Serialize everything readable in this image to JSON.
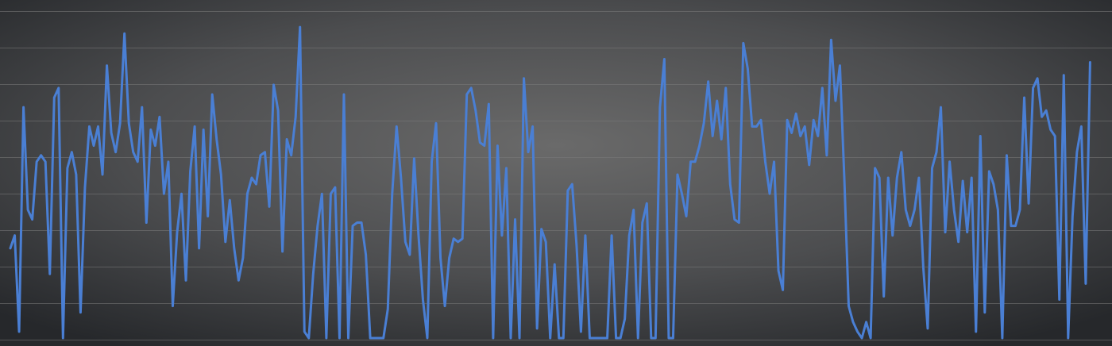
{
  "theme": {
    "background_outer": "#26282b",
    "background_inner": "#6a6a6a",
    "grid_color": "#7a7a7a",
    "line_color": "#4a7fd4"
  },
  "chart_data": {
    "type": "line",
    "title": "",
    "xlabel": "",
    "ylabel": "",
    "grid": true,
    "legend": "none",
    "xlim": [
      0,
      249
    ],
    "ylim": [
      0,
      100
    ],
    "series": [
      {
        "values": [
          28,
          32,
          2,
          72,
          40,
          37,
          55,
          57,
          55,
          20,
          75,
          78,
          0,
          53,
          58,
          51,
          8,
          47,
          66,
          60,
          66,
          51,
          85,
          64,
          58,
          67,
          95,
          67,
          58,
          55,
          72,
          36,
          65,
          60,
          69,
          45,
          55,
          10,
          33,
          45,
          18,
          52,
          66,
          28,
          65,
          38,
          76,
          62,
          51,
          30,
          43,
          28,
          18,
          25,
          45,
          50,
          48,
          57,
          58,
          41,
          79,
          71,
          27,
          62,
          57,
          69,
          97,
          2,
          0,
          20,
          35,
          45,
          0,
          45,
          47,
          0,
          76,
          0,
          35,
          36,
          36,
          26,
          0,
          0,
          0,
          0,
          9,
          45,
          66,
          50,
          30,
          26,
          56,
          32,
          12,
          0,
          55,
          67,
          25,
          10,
          25,
          31,
          30,
          31,
          76,
          78,
          71,
          61,
          60,
          73,
          0,
          60,
          32,
          53,
          0,
          37,
          0,
          81,
          58,
          66,
          3,
          34,
          30,
          0,
          23,
          0,
          0,
          46,
          48,
          29,
          2,
          32,
          0,
          0,
          0,
          0,
          0,
          32,
          0,
          0,
          6,
          32,
          40,
          0,
          36,
          42,
          0,
          0,
          72,
          87,
          0,
          0,
          51,
          45,
          38,
          55,
          55,
          60,
          67,
          80,
          63,
          74,
          62,
          78,
          48,
          37,
          36,
          92,
          84,
          66,
          66,
          68,
          55,
          45,
          55,
          21,
          15,
          68,
          64,
          70,
          63,
          66,
          54,
          68,
          63,
          78,
          57,
          93,
          74,
          85,
          50,
          10,
          5,
          2,
          0,
          5,
          0,
          53,
          50,
          13,
          50,
          32,
          50,
          58,
          40,
          35,
          40,
          50,
          22,
          3,
          53,
          58,
          72,
          33,
          55,
          40,
          30,
          49,
          33,
          50,
          2,
          63,
          8,
          52,
          48,
          40,
          0,
          57,
          35,
          35,
          40,
          75,
          42,
          78,
          81,
          69,
          71,
          65,
          63,
          12,
          82,
          0,
          38,
          58,
          66,
          17,
          86
        ]
      }
    ]
  }
}
